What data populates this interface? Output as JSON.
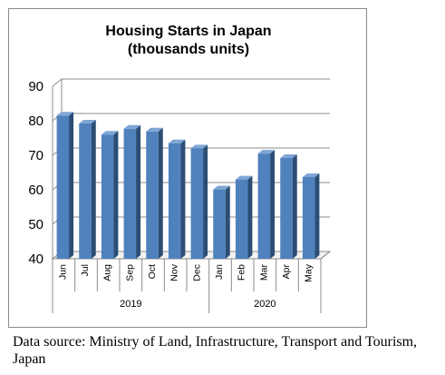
{
  "chart_data": {
    "type": "bar",
    "title_lines": [
      "Housing Starts in Japan",
      "(thousands units)"
    ],
    "categories": [
      "Jun",
      "Jul",
      "Aug",
      "Sep",
      "Oct",
      "Nov",
      "Dec",
      "Jan",
      "Feb",
      "Mar",
      "Apr",
      "May"
    ],
    "groups": [
      {
        "label": "2019",
        "categories": [
          "Jun",
          "Jul",
          "Aug",
          "Sep",
          "Oct",
          "Nov",
          "Dec"
        ]
      },
      {
        "label": "2020",
        "categories": [
          "Jan",
          "Feb",
          "Mar",
          "Apr",
          "May"
        ]
      }
    ],
    "values": [
      81.5,
      79.2,
      76.0,
      77.7,
      76.9,
      73.5,
      72.0,
      60.1,
      63.0,
      70.5,
      69.2,
      63.7
    ],
    "yticks": [
      40,
      50,
      60,
      70,
      80,
      90
    ],
    "ylim": [
      40,
      90
    ],
    "grid": true,
    "bar_style": "3d",
    "colors": {
      "bar_front": "#4f81bd",
      "bar_side": "#2c4d75",
      "bar_top": "#7fa6d6",
      "gridline": "#8c8c8c",
      "back_wall": "#ffffff"
    }
  },
  "footer": {
    "source": "Data source: Ministry of Land, Infrastructure, Transport and Tourism, Japan"
  }
}
